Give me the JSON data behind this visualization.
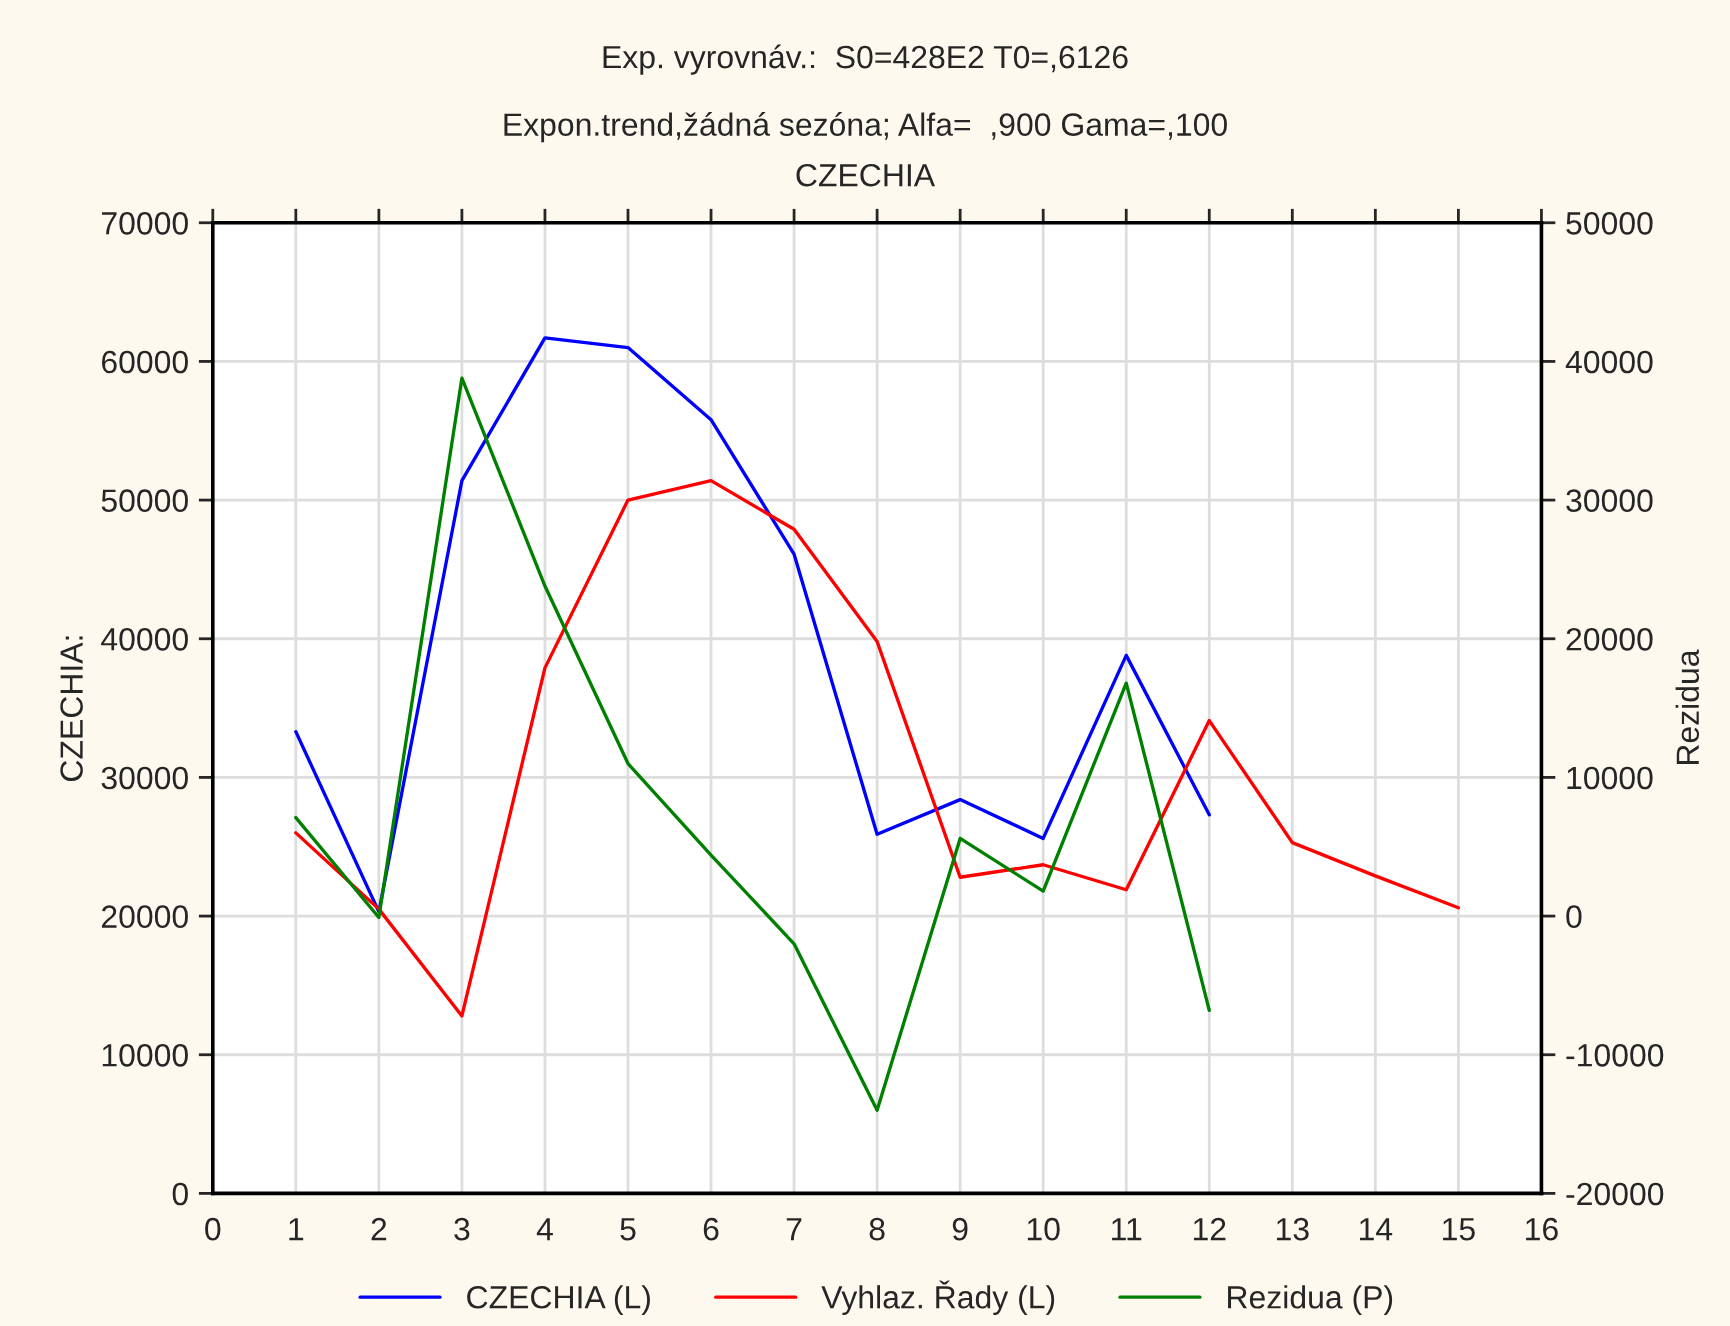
{
  "chart_data": {
    "type": "line",
    "title": "Exp. vyrovnáv.:  S0=428E2 T0=,6126",
    "subtitle": "Expon.trend,žádná sezóna; Alfa=  ,900 Gama=,100\nCZECHIA",
    "ylabel": "CZECHIA:",
    "y2label": "Rezidua",
    "x": [
      1,
      2,
      3,
      4,
      5,
      6,
      7,
      8,
      9,
      10,
      11,
      12,
      13,
      14,
      15
    ],
    "series": [
      {
        "name": "CZECHIA (L)",
        "color": "#0000ff",
        "values": [
          33300,
          20300,
          51400,
          61700,
          61000,
          55800,
          46100,
          25900,
          28400,
          25600,
          38800,
          27300,
          null,
          null,
          null
        ]
      },
      {
        "name": "Vyhlaz. Řady (L)",
        "color": "#ff0000",
        "values": [
          26000,
          20500,
          12800,
          37900,
          50000,
          51400,
          47900,
          39800,
          22800,
          23700,
          21900,
          34100,
          25300,
          22900,
          20600
        ]
      },
      {
        "name": "Rezidua (P)",
        "color": "#008000",
        "axis": "y2",
        "values": [
          7100,
          -100,
          38800,
          23800,
          11000,
          4400,
          -2000,
          -14000,
          5600,
          1800,
          16800,
          -6800,
          null,
          null,
          null
        ]
      }
    ],
    "xlim": [
      0,
      16
    ],
    "xticks": [
      0,
      1,
      2,
      3,
      4,
      5,
      6,
      7,
      8,
      9,
      10,
      11,
      12,
      13,
      14,
      15,
      16
    ],
    "ylim": [
      0,
      70000
    ],
    "yticks": [
      0,
      10000,
      20000,
      30000,
      40000,
      50000,
      60000,
      70000
    ],
    "y2lim": [
      -20000,
      50000
    ],
    "y2ticks": [
      -20000,
      -10000,
      0,
      10000,
      20000,
      30000,
      40000,
      50000
    ],
    "grid": true,
    "legend": "bottom",
    "marker": "none",
    "line_style": "solid"
  }
}
